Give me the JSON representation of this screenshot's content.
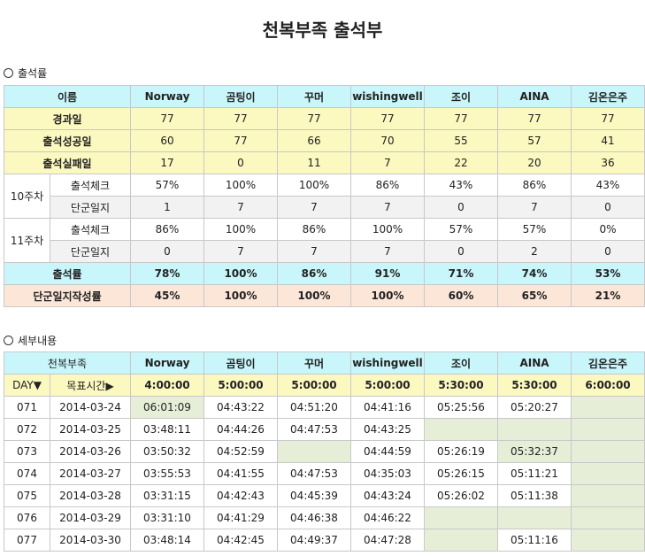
{
  "title": "천복부족 출석부",
  "section1": "출석률",
  "section2": "세부내용",
  "members": [
    "Norway",
    "곰팅이",
    "꾸머",
    "wishingwell",
    "조이",
    "AINA",
    "김온은주"
  ],
  "attendance": {
    "name_header": "이름",
    "days_label": "경과일",
    "days": [
      "77",
      "77",
      "77",
      "77",
      "77",
      "77",
      "77"
    ],
    "success_label": "출석성공일",
    "success": [
      "60",
      "77",
      "66",
      "70",
      "55",
      "57",
      "41"
    ],
    "fail_label": "출석실패일",
    "fail": [
      "17",
      "0",
      "11",
      "7",
      "22",
      "20",
      "36"
    ],
    "weeks": [
      {
        "label": "10주차",
        "check_label": "출석체크",
        "check": [
          "57%",
          "100%",
          "100%",
          "86%",
          "43%",
          "86%",
          "43%"
        ],
        "journal_label": "단군일지",
        "journal": [
          "1",
          "7",
          "7",
          "7",
          "0",
          "7",
          "0"
        ]
      },
      {
        "label": "11주차",
        "check_label": "출석체크",
        "check": [
          "86%",
          "100%",
          "86%",
          "100%",
          "57%",
          "57%",
          "0%"
        ],
        "journal_label": "단군일지",
        "journal": [
          "0",
          "7",
          "7",
          "7",
          "0",
          "2",
          "0"
        ]
      }
    ],
    "rate_label": "출석률",
    "rate": [
      "78%",
      "100%",
      "86%",
      "91%",
      "71%",
      "74%",
      "53%"
    ],
    "journal_rate_label": "단군일지작성률",
    "journal_rate": [
      "45%",
      "100%",
      "100%",
      "100%",
      "60%",
      "65%",
      "21%"
    ]
  },
  "detail": {
    "tribe_header": "천복부족",
    "day_header": "DAY▼",
    "target_header": "목표시간▶",
    "targets": [
      "4:00:00",
      "5:00:00",
      "5:00:00",
      "5:00:00",
      "5:30:00",
      "5:30:00",
      "6:00:00"
    ],
    "rows": [
      {
        "day": "071",
        "date": "2014-03-24",
        "times": [
          "06:01:09",
          "04:43:22",
          "04:51:20",
          "04:41:16",
          "05:25:56",
          "05:20:27",
          ""
        ]
      },
      {
        "day": "072",
        "date": "2014-03-25",
        "times": [
          "03:48:11",
          "04:44:26",
          "04:47:53",
          "04:43:25",
          "",
          "",
          ""
        ]
      },
      {
        "day": "073",
        "date": "2014-03-26",
        "times": [
          "03:50:32",
          "04:52:59",
          "",
          "04:44:59",
          "05:26:19",
          "05:32:37",
          ""
        ]
      },
      {
        "day": "074",
        "date": "2014-03-27",
        "times": [
          "03:55:53",
          "04:41:55",
          "04:47:53",
          "04:35:03",
          "05:26:15",
          "05:11:21",
          ""
        ]
      },
      {
        "day": "075",
        "date": "2014-03-28",
        "times": [
          "03:31:15",
          "04:42:43",
          "04:45:39",
          "04:43:24",
          "05:26:02",
          "05:11:38",
          ""
        ]
      },
      {
        "day": "076",
        "date": "2014-03-29",
        "times": [
          "03:31:10",
          "04:41:29",
          "04:46:38",
          "04:46:22",
          "",
          "",
          ""
        ]
      },
      {
        "day": "077",
        "date": "2014-03-30",
        "times": [
          "03:48:14",
          "04:42:45",
          "04:49:37",
          "04:47:28",
          "",
          "05:11:16",
          ""
        ]
      }
    ],
    "highlight": [
      [
        true,
        false,
        false,
        false,
        false,
        false,
        true
      ],
      [
        false,
        false,
        false,
        false,
        true,
        true,
        true
      ],
      [
        false,
        false,
        true,
        false,
        false,
        true,
        true
      ],
      [
        false,
        false,
        false,
        false,
        false,
        false,
        true
      ],
      [
        false,
        false,
        false,
        false,
        false,
        false,
        true
      ],
      [
        false,
        false,
        false,
        false,
        true,
        true,
        true
      ],
      [
        false,
        false,
        false,
        false,
        true,
        false,
        true
      ]
    ]
  }
}
